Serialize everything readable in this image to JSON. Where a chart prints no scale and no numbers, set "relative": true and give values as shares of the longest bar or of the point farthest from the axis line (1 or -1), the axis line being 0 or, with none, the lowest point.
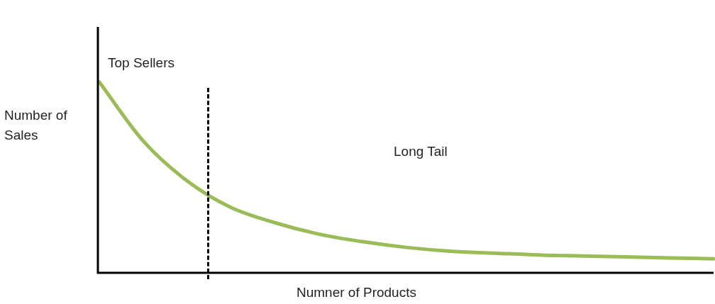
{
  "chart_data": {
    "type": "line",
    "relative": true,
    "xlabel": "Numner of Products",
    "ylabel": "Number of Sales",
    "categories": [
      null,
      null,
      null,
      null,
      null,
      null,
      null,
      null,
      null,
      null,
      null,
      null,
      null,
      null,
      null
    ],
    "series": [
      {
        "color": "#9bbb59",
        "values": [
          1.0,
          0.69,
          0.48,
          0.34,
          0.26,
          0.2,
          0.16,
          0.13,
          0.11,
          0.1,
          0.09,
          0.085,
          0.08,
          0.075,
          0.07
        ]
      }
    ],
    "annotations": [
      "Top Sellers",
      "Long Tail"
    ],
    "grid": false,
    "legend": false,
    "marker": "none",
    "line_style": "solid"
  }
}
